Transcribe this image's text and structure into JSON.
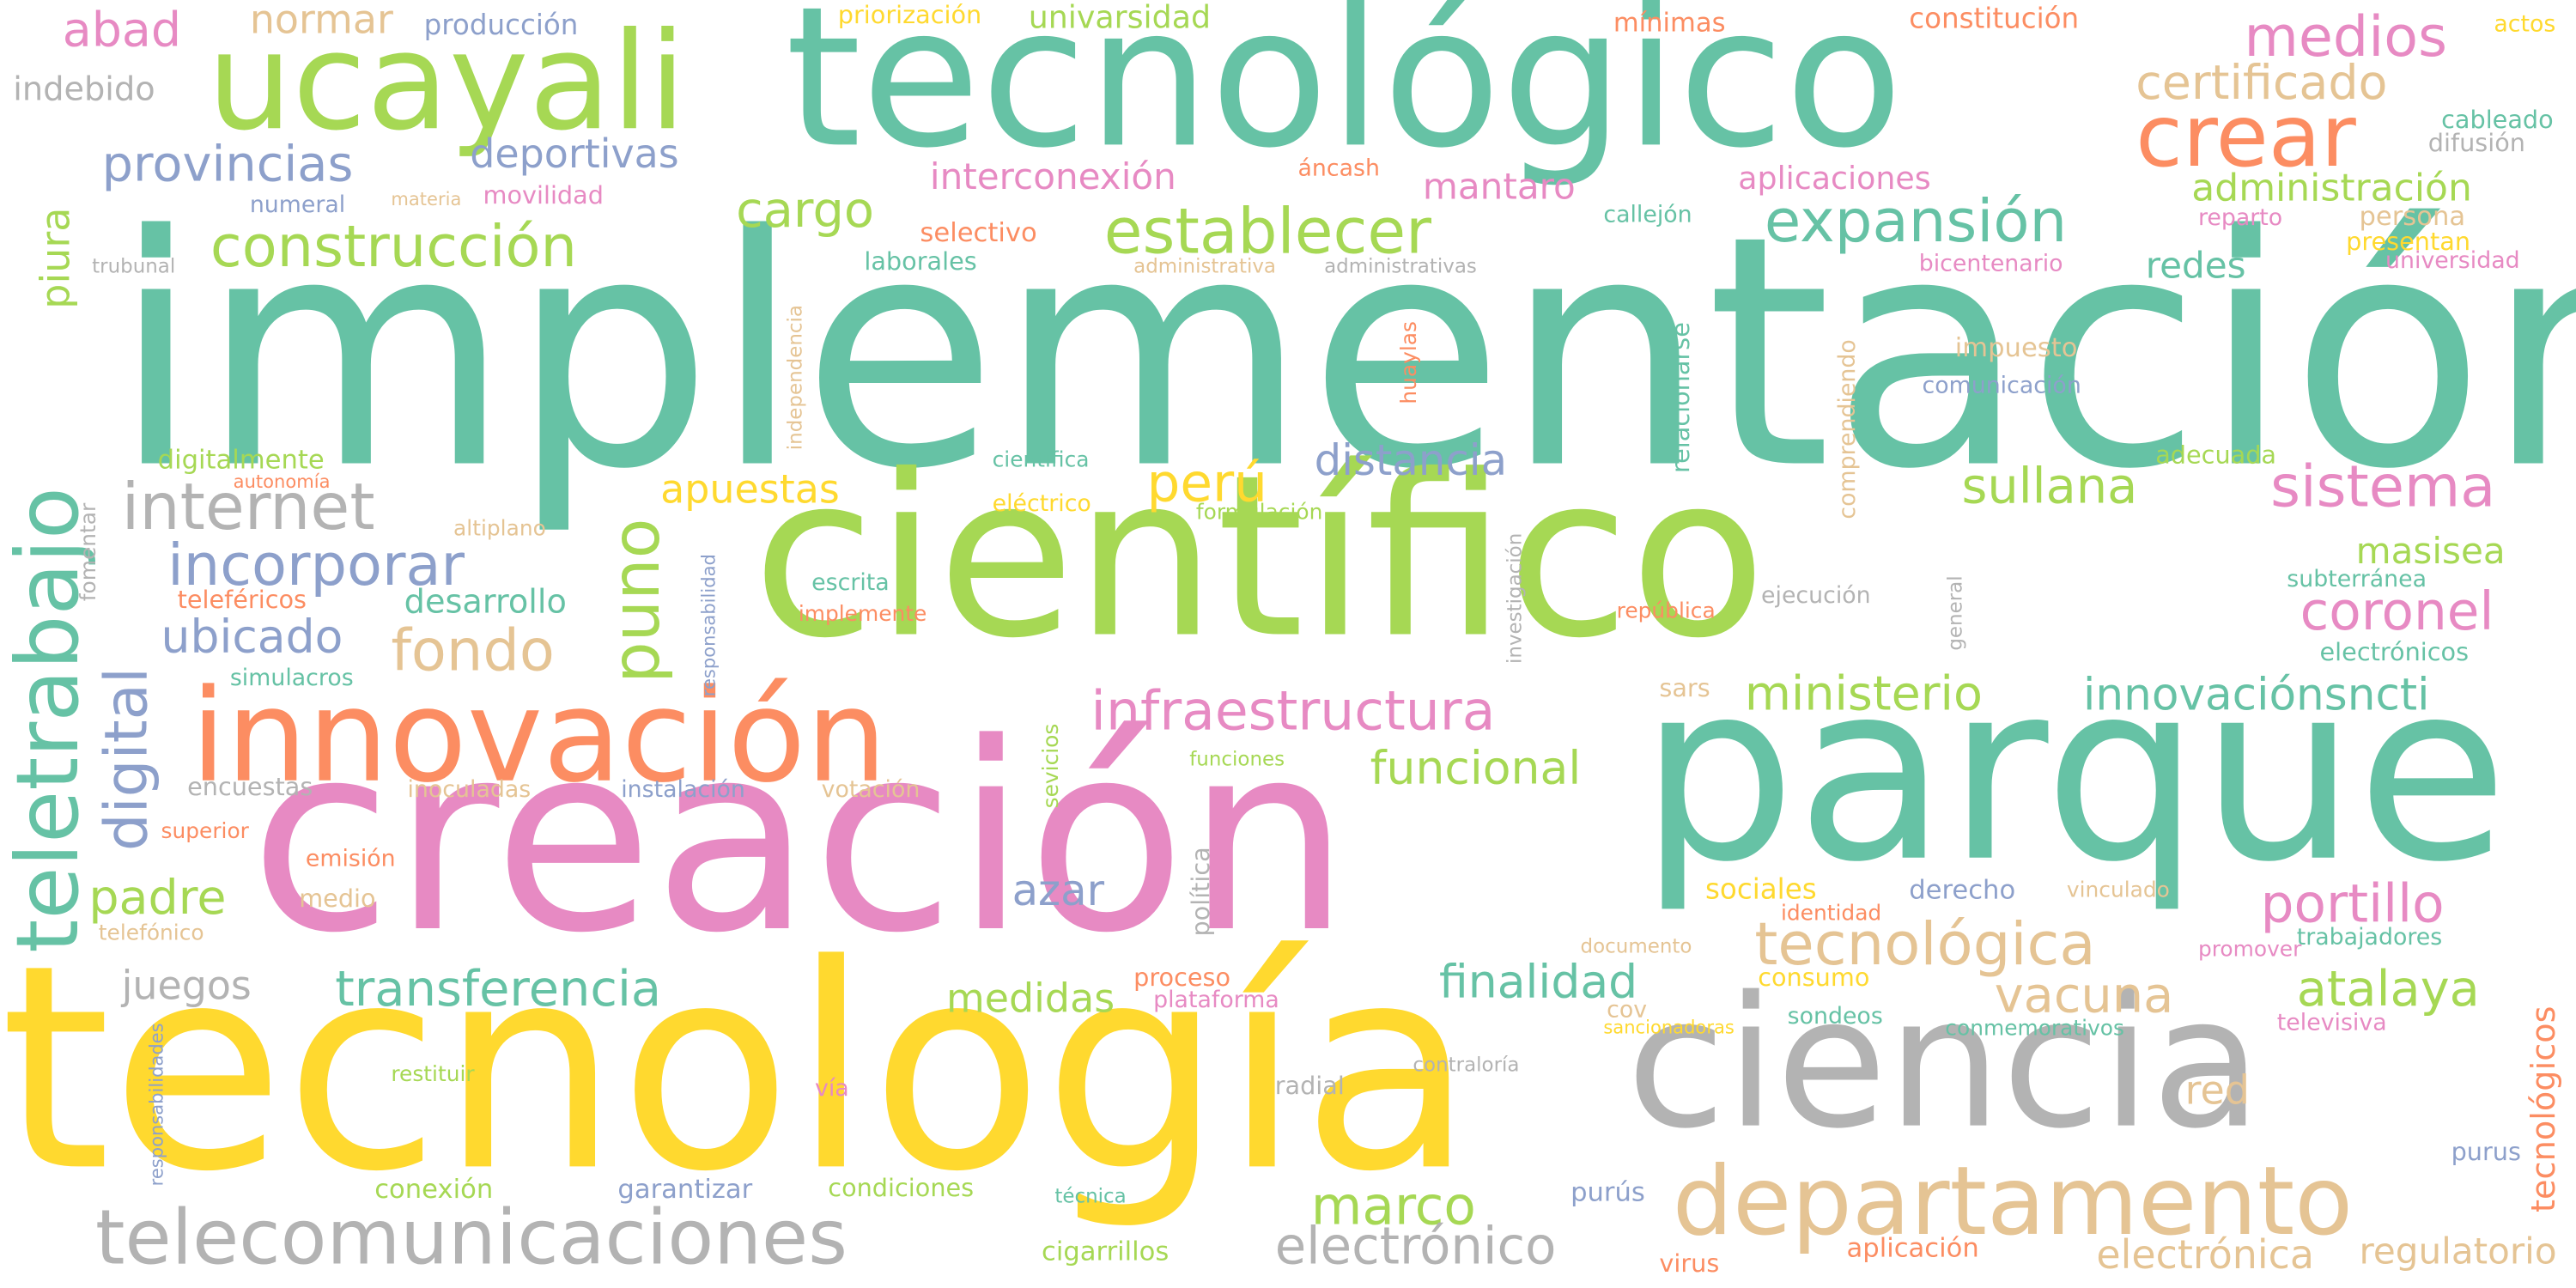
{
  "words": [
    {
      "text": "implementación",
      "color": "#66c2a5"
    },
    {
      "text": "tecnología",
      "color": "#ffd92f"
    },
    {
      "text": "creación",
      "color": "#e78ac3"
    },
    {
      "text": "científico",
      "color": "#a6d854"
    },
    {
      "text": "parque",
      "color": "#66c2a5"
    },
    {
      "text": "tecnológico",
      "color": "#66c2a5"
    },
    {
      "text": "ciencia",
      "color": "#b3b3b3"
    },
    {
      "text": "innovación",
      "color": "#fc8d62"
    },
    {
      "text": "ucayali",
      "color": "#a6d854"
    },
    {
      "text": "departamento",
      "color": "#e5c494"
    },
    {
      "text": "telecomunicaciones",
      "color": "#b3b3b3"
    },
    {
      "text": "teletrabajo",
      "color": "#66c2a5"
    },
    {
      "text": "crear",
      "color": "#fc8d62"
    },
    {
      "text": "establecer",
      "color": "#a6d854"
    },
    {
      "text": "infraestructura",
      "color": "#e78ac3"
    },
    {
      "text": "expansión",
      "color": "#66c2a5"
    },
    {
      "text": "construcción",
      "color": "#a6d854"
    },
    {
      "text": "tecnológica",
      "color": "#e5c494"
    },
    {
      "text": "transferencia",
      "color": "#66c2a5"
    },
    {
      "text": "internet",
      "color": "#b3b3b3"
    },
    {
      "text": "incorporar",
      "color": "#8da0cb"
    },
    {
      "text": "provincias",
      "color": "#8da0cb"
    },
    {
      "text": "sistema",
      "color": "#e78ac3"
    },
    {
      "text": "sullana",
      "color": "#a6d854"
    },
    {
      "text": "medios",
      "color": "#e78ac3"
    },
    {
      "text": "portillo",
      "color": "#e78ac3"
    },
    {
      "text": "coronel",
      "color": "#e78ac3"
    },
    {
      "text": "vacuna",
      "color": "#e5c494"
    },
    {
      "text": "atalaya",
      "color": "#a6d854"
    },
    {
      "text": "certificado",
      "color": "#e5c494"
    },
    {
      "text": "ministerio",
      "color": "#a6d854"
    },
    {
      "text": "innovaciónsncti",
      "color": "#66c2a5"
    },
    {
      "text": "funcional",
      "color": "#a6d854"
    },
    {
      "text": "finalidad",
      "color": "#66c2a5"
    },
    {
      "text": "digital",
      "color": "#8da0cb"
    },
    {
      "text": "puno",
      "color": "#a6d854"
    },
    {
      "text": "fondo",
      "color": "#e5c494"
    },
    {
      "text": "ubicado",
      "color": "#8da0cb"
    },
    {
      "text": "padre",
      "color": "#a6d854"
    },
    {
      "text": "marco",
      "color": "#a6d854"
    },
    {
      "text": "electrónico",
      "color": "#b3b3b3"
    },
    {
      "text": "perú",
      "color": "#ffd92f"
    },
    {
      "text": "apuestas",
      "color": "#ffd92f"
    },
    {
      "text": "distancia",
      "color": "#8da0cb"
    },
    {
      "text": "cargo",
      "color": "#a6d854"
    },
    {
      "text": "deportivas",
      "color": "#8da0cb"
    },
    {
      "text": "abad",
      "color": "#e78ac3"
    },
    {
      "text": "piura",
      "color": "#a6d854"
    },
    {
      "text": "normar",
      "color": "#e5c494"
    },
    {
      "text": "interconexión",
      "color": "#e78ac3"
    },
    {
      "text": "mantaro",
      "color": "#e78ac3"
    },
    {
      "text": "administración",
      "color": "#a6d854"
    },
    {
      "text": "juegos",
      "color": "#b3b3b3"
    },
    {
      "text": "medidas",
      "color": "#a6d854"
    },
    {
      "text": "azar",
      "color": "#8da0cb"
    },
    {
      "text": "red",
      "color": "#e5c494"
    },
    {
      "text": "masisea",
      "color": "#a6d854"
    },
    {
      "text": "redes",
      "color": "#66c2a5"
    },
    {
      "text": "electrónica",
      "color": "#e5c494"
    },
    {
      "text": "regulatorio",
      "color": "#e5c494"
    },
    {
      "text": "tecnológicos",
      "color": "#fc8d62"
    },
    {
      "text": "desarrollo",
      "color": "#66c2a5"
    },
    {
      "text": "universidad",
      "color": "#e78ac3"
    },
    {
      "text": "producción",
      "color": "#8da0cb"
    },
    {
      "text": "indebido",
      "color": "#b3b3b3"
    },
    {
      "text": "priorización",
      "color": "#ffd92f"
    },
    {
      "text": "univarsidad",
      "color": "#a6d854"
    },
    {
      "text": "mínimas",
      "color": "#fc8d62"
    },
    {
      "text": "constitución",
      "color": "#fc8d62"
    },
    {
      "text": "actos",
      "color": "#ffd92f"
    },
    {
      "text": "cableado",
      "color": "#66c2a5"
    },
    {
      "text": "difusión",
      "color": "#b3b3b3"
    },
    {
      "text": "aplicaciones",
      "color": "#e78ac3"
    },
    {
      "text": "áncash",
      "color": "#fc8d62"
    },
    {
      "text": "numeral",
      "color": "#8da0cb"
    },
    {
      "text": "materia",
      "color": "#e5c494"
    },
    {
      "text": "movilidad",
      "color": "#e78ac3"
    },
    {
      "text": "callejón",
      "color": "#66c2a5"
    },
    {
      "text": "reparto",
      "color": "#e78ac3"
    },
    {
      "text": "persona",
      "color": "#e5c494"
    },
    {
      "text": "presentan",
      "color": "#ffd92f"
    },
    {
      "text": "selectivo",
      "color": "#fc8d62"
    },
    {
      "text": "laborales",
      "color": "#66c2a5"
    },
    {
      "text": "administrativa",
      "color": "#e5c494"
    },
    {
      "text": "administrativas",
      "color": "#b3b3b3"
    },
    {
      "text": "bicentenario",
      "color": "#e78ac3"
    },
    {
      "text": "trubunal",
      "color": "#b3b3b3"
    },
    {
      "text": "impuesto",
      "color": "#e5c494"
    },
    {
      "text": "comunicación",
      "color": "#8da0cb"
    },
    {
      "text": "adecuada",
      "color": "#a6d854"
    },
    {
      "text": "digitalmente",
      "color": "#a6d854"
    },
    {
      "text": "autonomía",
      "color": "#fc8d62"
    },
    {
      "text": "fomentar",
      "color": "#b3b3b3"
    },
    {
      "text": "científica",
      "color": "#66c2a5"
    },
    {
      "text": "eléctrico",
      "color": "#ffd92f"
    },
    {
      "text": "formulación",
      "color": "#a6d854"
    },
    {
      "text": "altiplano",
      "color": "#e5c494"
    },
    {
      "text": "escrita",
      "color": "#66c2a5"
    },
    {
      "text": "implemente",
      "color": "#fc8d62"
    },
    {
      "text": "república",
      "color": "#fc8d62"
    },
    {
      "text": "ejecución",
      "color": "#b3b3b3"
    },
    {
      "text": "subterránea",
      "color": "#66c2a5"
    },
    {
      "text": "electrónicos",
      "color": "#66c2a5"
    },
    {
      "text": "teleféricos",
      "color": "#fc8d62"
    },
    {
      "text": "simulacros",
      "color": "#66c2a5"
    },
    {
      "text": "sars",
      "color": "#e5c494"
    },
    {
      "text": "encuestas",
      "color": "#b3b3b3"
    },
    {
      "text": "inoculadas",
      "color": "#e5c494"
    },
    {
      "text": "instalación",
      "color": "#8da0cb"
    },
    {
      "text": "votación",
      "color": "#e5c494"
    },
    {
      "text": "funciones",
      "color": "#a6d854"
    },
    {
      "text": "superior",
      "color": "#fc8d62"
    },
    {
      "text": "emisión",
      "color": "#fc8d62"
    },
    {
      "text": "medio",
      "color": "#e5c494"
    },
    {
      "text": "telefónico",
      "color": "#e5c494"
    },
    {
      "text": "sociales",
      "color": "#ffd92f"
    },
    {
      "text": "derecho",
      "color": "#8da0cb"
    },
    {
      "text": "vinculado",
      "color": "#e5c494"
    },
    {
      "text": "identidad",
      "color": "#fc8d62"
    },
    {
      "text": "documento",
      "color": "#e5c494"
    },
    {
      "text": "promover",
      "color": "#e78ac3"
    },
    {
      "text": "trabajadores",
      "color": "#66c2a5"
    },
    {
      "text": "proceso",
      "color": "#fc8d62"
    },
    {
      "text": "plataforma",
      "color": "#e78ac3"
    },
    {
      "text": "cov",
      "color": "#e5c494"
    },
    {
      "text": "consumo",
      "color": "#ffd92f"
    },
    {
      "text": "sondeos",
      "color": "#66c2a5"
    },
    {
      "text": "conmemorativos",
      "color": "#66c2a5"
    },
    {
      "text": "televisiva",
      "color": "#e78ac3"
    },
    {
      "text": "sancionadoras",
      "color": "#ffd92f"
    },
    {
      "text": "restituir",
      "color": "#a6d854"
    },
    {
      "text": "vía",
      "color": "#e78ac3"
    },
    {
      "text": "radial",
      "color": "#b3b3b3"
    },
    {
      "text": "contraloría",
      "color": "#b3b3b3"
    },
    {
      "text": "conexión",
      "color": "#a6d854"
    },
    {
      "text": "garantizar",
      "color": "#8da0cb"
    },
    {
      "text": "condiciones",
      "color": "#a6d854"
    },
    {
      "text": "técnica",
      "color": "#66c2a5"
    },
    {
      "text": "purús",
      "color": "#8da0cb"
    },
    {
      "text": "purus",
      "color": "#8da0cb"
    },
    {
      "text": "cigarrillos",
      "color": "#a6d854"
    },
    {
      "text": "virus",
      "color": "#fc8d62"
    },
    {
      "text": "aplicación",
      "color": "#fc8d62"
    },
    {
      "text": "responsabilidades",
      "color": "#8da0cb"
    },
    {
      "text": "sevicios",
      "color": "#a6d854"
    },
    {
      "text": "política",
      "color": "#b3b3b3"
    },
    {
      "text": "responsabilidad",
      "color": "#8da0cb"
    },
    {
      "text": "investigación",
      "color": "#b3b3b3"
    },
    {
      "text": "independencia",
      "color": "#e5c494"
    },
    {
      "text": "huaylas",
      "color": "#fc8d62"
    },
    {
      "text": "relacionarse",
      "color": "#66c2a5"
    },
    {
      "text": "comprendiendo",
      "color": "#e5c494"
    },
    {
      "text": "general",
      "color": "#b3b3b3"
    }
  ]
}
